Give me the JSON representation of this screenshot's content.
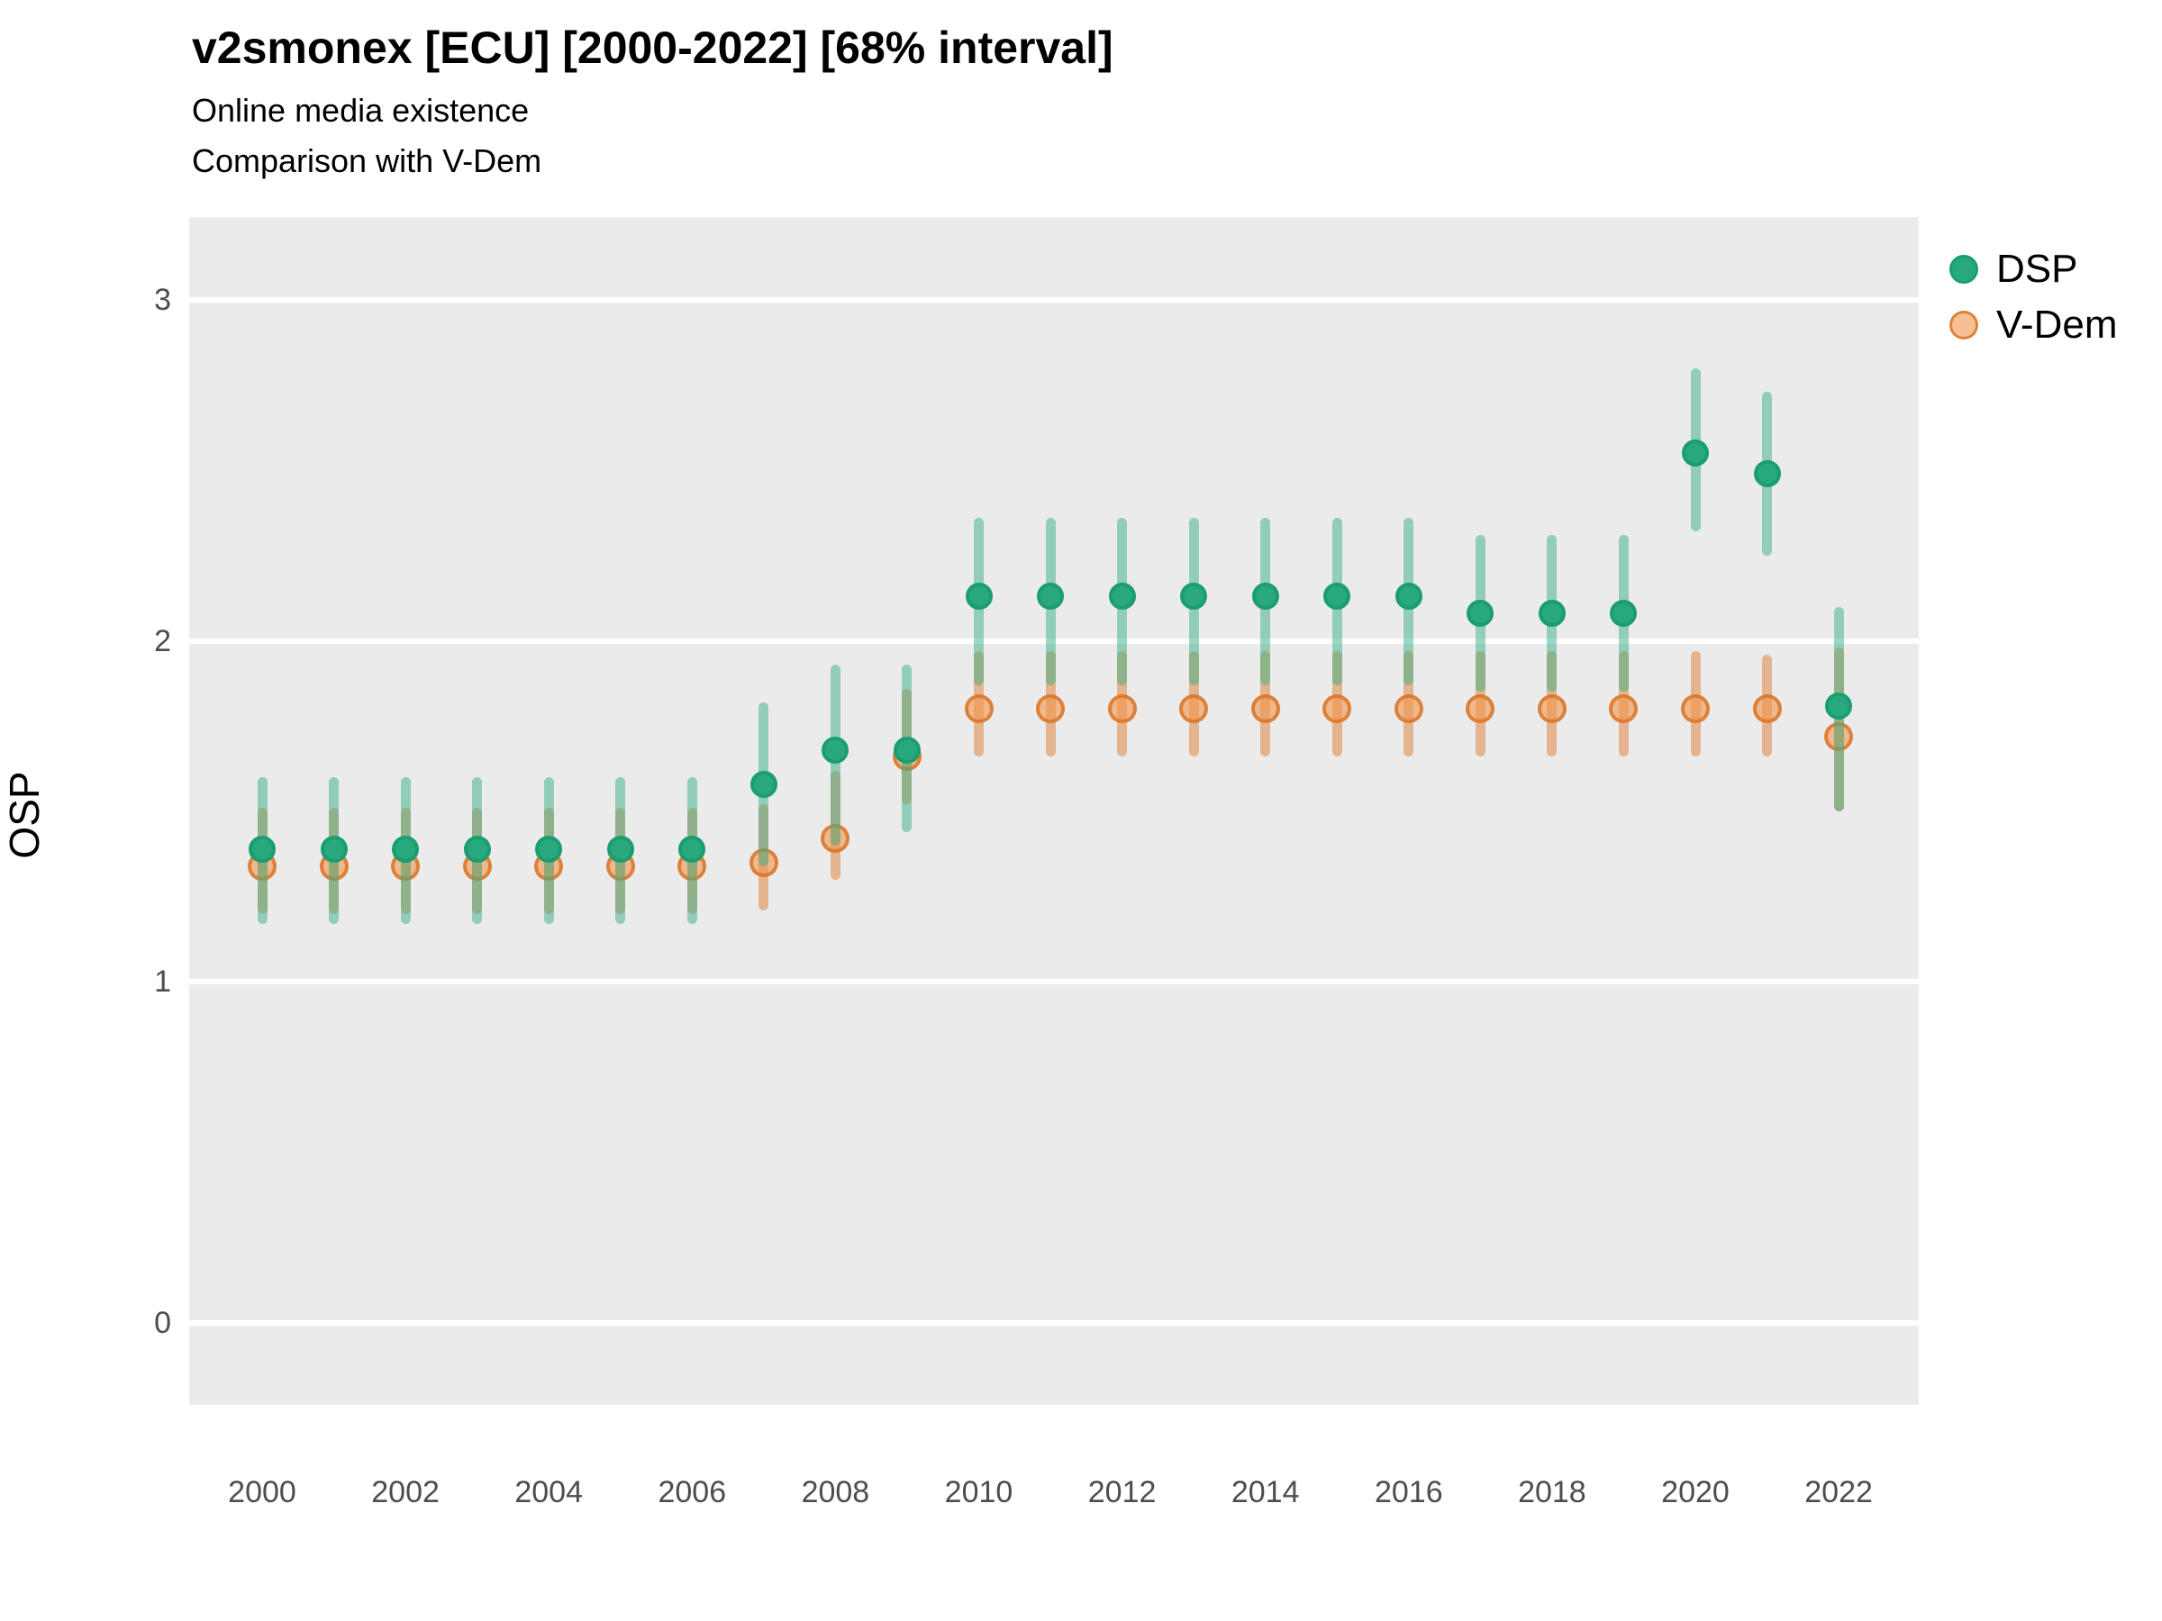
{
  "header": {
    "title": "v2smonex [ECU] [2000-2022] [68% interval]",
    "subtitle1": "Online media existence",
    "subtitle2": "Comparison with V-Dem"
  },
  "axes": {
    "y_label": "OSP",
    "y_ticks": [
      "0",
      "1",
      "2",
      "3"
    ],
    "x_ticks": [
      "2000",
      "2002",
      "2004",
      "2006",
      "2008",
      "2010",
      "2012",
      "2014",
      "2016",
      "2018",
      "2020",
      "2022"
    ]
  },
  "legend": {
    "items": [
      {
        "label": "DSP"
      },
      {
        "label": "V-Dem"
      }
    ]
  },
  "colors": {
    "panel_bg": "#EBEBEB",
    "gridline": "#FFFFFF",
    "axis_text": "#4D4D4D",
    "dsp_point_fill": "#29A87E",
    "dsp_point_stroke": "#1A9E71",
    "dsp_bar": "rgba(57,175,135,0.5)",
    "vdem_point_fill": "rgba(242,148,77,0.6)",
    "vdem_point_stroke": "rgba(215,115,37,0.8)",
    "vdem_bar": "rgba(221,126,50,0.5)"
  },
  "chart_data": {
    "type": "scatter",
    "subtype": "pointrange",
    "interval": "68%",
    "title": "v2smonex [ECU] [2000-2022] [68% interval]",
    "xlabel": "",
    "ylabel": "OSP",
    "x": [
      2000,
      2001,
      2002,
      2003,
      2004,
      2005,
      2006,
      2007,
      2008,
      2009,
      2010,
      2011,
      2012,
      2013,
      2014,
      2015,
      2016,
      2017,
      2018,
      2019,
      2020,
      2021,
      2022
    ],
    "ylim": [
      -0.25,
      3.25
    ],
    "y_tick_values": [
      0,
      1,
      2,
      3
    ],
    "x_tick_values": [
      2000,
      2002,
      2004,
      2006,
      2008,
      2010,
      2012,
      2014,
      2016,
      2018,
      2020,
      2022
    ],
    "grid": "horizontal-major-only",
    "legend_position": "right-top",
    "series": [
      {
        "name": "V-Dem",
        "values": [
          1.34,
          1.34,
          1.34,
          1.34,
          1.34,
          1.34,
          1.34,
          1.35,
          1.42,
          1.66,
          1.8,
          1.8,
          1.8,
          1.8,
          1.8,
          1.8,
          1.8,
          1.8,
          1.8,
          1.8,
          1.8,
          1.8,
          1.72
        ],
        "lower": [
          1.2,
          1.2,
          1.2,
          1.2,
          1.2,
          1.2,
          1.2,
          1.21,
          1.3,
          1.52,
          1.66,
          1.66,
          1.66,
          1.66,
          1.66,
          1.66,
          1.66,
          1.66,
          1.66,
          1.66,
          1.66,
          1.66,
          1.5
        ],
        "upper": [
          1.51,
          1.51,
          1.51,
          1.51,
          1.51,
          1.51,
          1.51,
          1.52,
          1.62,
          1.86,
          1.97,
          1.97,
          1.97,
          1.97,
          1.97,
          1.97,
          1.97,
          1.97,
          1.97,
          1.97,
          1.97,
          1.96,
          1.98
        ]
      },
      {
        "name": "DSP",
        "values": [
          1.39,
          1.39,
          1.39,
          1.39,
          1.39,
          1.39,
          1.39,
          1.58,
          1.68,
          1.68,
          2.13,
          2.13,
          2.13,
          2.13,
          2.13,
          2.13,
          2.13,
          2.08,
          2.08,
          2.08,
          2.55,
          2.49,
          1.81
        ],
        "lower": [
          1.17,
          1.17,
          1.17,
          1.17,
          1.17,
          1.17,
          1.17,
          1.34,
          1.4,
          1.44,
          1.87,
          1.87,
          1.87,
          1.87,
          1.87,
          1.87,
          1.87,
          1.85,
          1.85,
          1.85,
          2.32,
          2.25,
          1.5
        ],
        "upper": [
          1.6,
          1.6,
          1.6,
          1.6,
          1.6,
          1.6,
          1.6,
          1.82,
          1.93,
          1.93,
          2.36,
          2.36,
          2.36,
          2.36,
          2.36,
          2.36,
          2.36,
          2.31,
          2.31,
          2.31,
          2.8,
          2.73,
          2.1
        ]
      }
    ]
  }
}
